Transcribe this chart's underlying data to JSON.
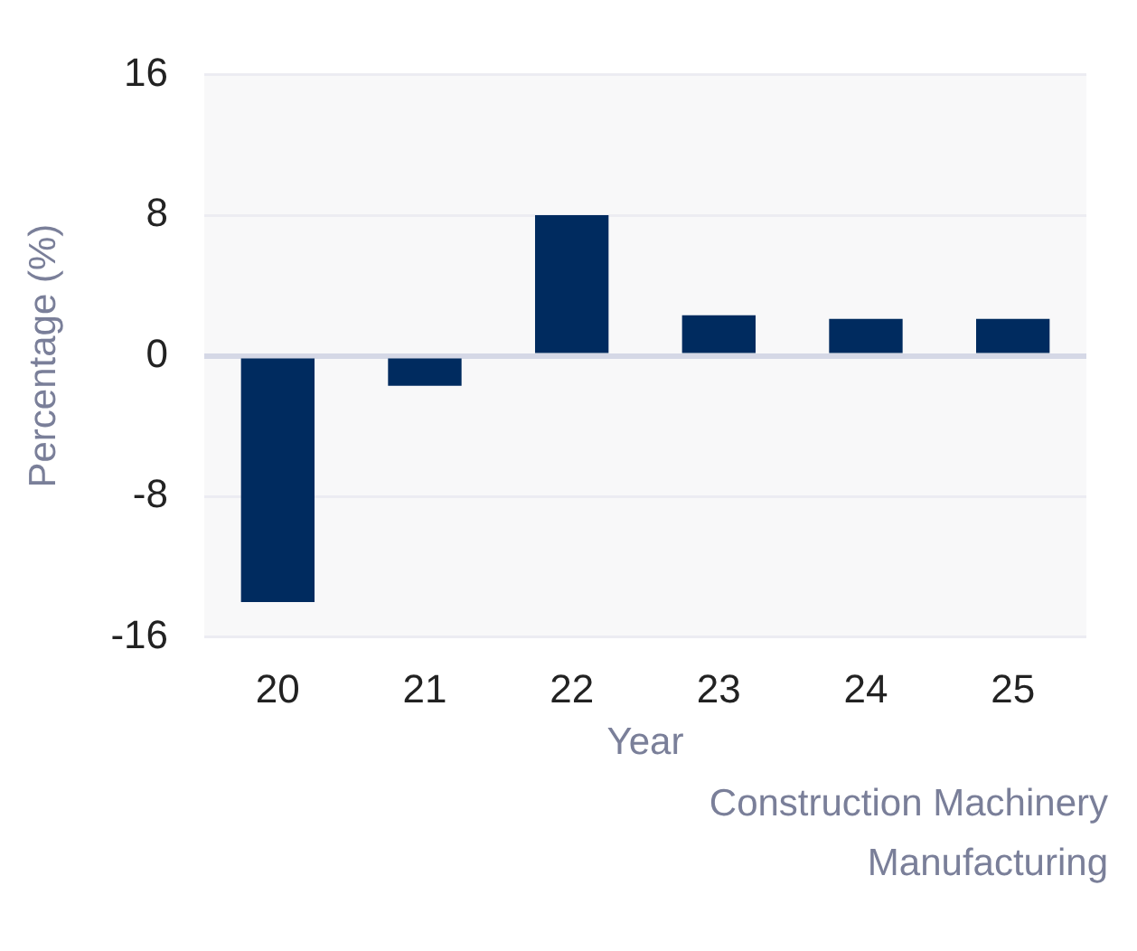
{
  "chart_data": {
    "type": "bar",
    "xlabel": "Year",
    "ylabel": "Percentage (%)",
    "categories": [
      "20",
      "21",
      "22",
      "23",
      "24",
      "25"
    ],
    "values": [
      -14.0,
      -1.7,
      8.0,
      2.3,
      2.1,
      2.1
    ],
    "color": "#002b5f",
    "ylim": [
      -16,
      16
    ],
    "yticks": [
      -16,
      -8,
      0,
      8,
      16
    ],
    "grid": "y",
    "annotations": [
      "Construction Machinery Manufacturing"
    ]
  }
}
